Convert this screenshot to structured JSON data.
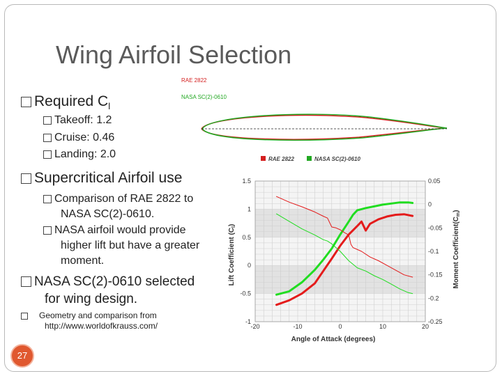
{
  "slide": {
    "title": "Wing Airfoil Selection",
    "page_number": "27",
    "bullets": {
      "required": {
        "text": "Required C",
        "sub": "l"
      },
      "takeoff": "Takeoff: 1.2",
      "cruise": "Cruise: 0.46",
      "landing": "Landing: 2.0",
      "supercritical": "Supercritical Airfoil use",
      "comparison_line1": "Comparison of RAE 2822 to",
      "comparison_line2": "NASA SC(2)-0610.",
      "nasa_line1": "NASA airfoil would provide",
      "nasa_line2": "higher lift but have a greater",
      "nasa_line3": "moment.",
      "selected_line1": "NASA SC(2)-0610 selected",
      "selected_line2": "for wing design.",
      "geometry_line1": "Geometry and comparison from",
      "geometry_line2": "http://www.worldofkrauss.com/"
    }
  },
  "airfoil_figure": {
    "legend": [
      {
        "name": "RAE 2822",
        "color": "#d42020"
      },
      {
        "name": "NASA SC(2)-0610",
        "color": "#22a822"
      }
    ]
  },
  "chart_data": {
    "type": "line",
    "legend": [
      "RAE 2822",
      "NASA SC(2)-0610"
    ],
    "xlabel": "Angle of Attack (degrees)",
    "ylabel_left": "Lift Coefficient (C",
    "ylabel_left_sub": "l",
    "ylabel_right": "Moment Coefficient(C",
    "ylabel_right_sub": "m",
    "xlim": [
      -20,
      20
    ],
    "ylim_left": [
      -1,
      1.5
    ],
    "ylim_right": [
      -0.25,
      0.05
    ],
    "x_ticks": [
      "-20",
      "-10",
      "0",
      "10",
      "20"
    ],
    "y_ticks_left": [
      "1.5",
      "1",
      "0.5",
      "0",
      "-0.5",
      "-1"
    ],
    "y_ticks_right": [
      "0.05",
      "0",
      "-0.05",
      "-0.1",
      "-0.15",
      "-0.2",
      "-0.25"
    ],
    "grid": true,
    "colors": {
      "rae": "#e41b1b",
      "nasa": "#21dd21"
    },
    "series": [
      {
        "name": "RAE 2822",
        "axis": "left",
        "width": 3,
        "x": [
          -15,
          -12,
          -9,
          -6,
          -4,
          -2,
          0,
          2,
          4,
          5,
          6,
          7,
          9,
          11,
          13,
          15,
          17
        ],
        "y": [
          -0.7,
          -0.62,
          -0.5,
          -0.32,
          -0.1,
          0.12,
          0.35,
          0.55,
          0.7,
          0.78,
          0.62,
          0.74,
          0.82,
          0.87,
          0.9,
          0.91,
          0.88
        ]
      },
      {
        "name": "NASA SC(2)-0610",
        "axis": "left",
        "width": 3,
        "x": [
          -15,
          -12,
          -9,
          -6,
          -4,
          -2,
          0,
          2,
          3,
          4,
          5,
          6,
          8,
          10,
          12,
          14,
          16,
          17
        ],
        "y": [
          -0.52,
          -0.46,
          -0.3,
          -0.08,
          0.1,
          0.3,
          0.55,
          0.78,
          0.9,
          0.98,
          1.0,
          1.02,
          1.05,
          1.08,
          1.1,
          1.12,
          1.12,
          1.11
        ]
      },
      {
        "name": "RAE 2822",
        "axis": "right",
        "width": 1,
        "x": [
          -15,
          -12,
          -9,
          -6,
          -4,
          -3,
          -2,
          -1,
          0,
          1,
          2,
          2.5,
          3,
          5,
          7,
          9,
          11,
          13,
          15,
          17
        ],
        "y": [
          0.017,
          0.005,
          -0.005,
          -0.016,
          -0.025,
          -0.029,
          -0.048,
          -0.05,
          -0.054,
          -0.06,
          -0.065,
          -0.085,
          -0.092,
          -0.1,
          -0.112,
          -0.12,
          -0.13,
          -0.14,
          -0.15,
          -0.155
        ]
      },
      {
        "name": "NASA SC(2)-0610",
        "axis": "right",
        "width": 1,
        "x": [
          -15,
          -12,
          -9,
          -6,
          -4,
          -3,
          -2,
          0,
          2,
          4,
          6,
          8,
          10,
          12,
          14,
          16,
          17
        ],
        "y": [
          -0.02,
          -0.036,
          -0.052,
          -0.065,
          -0.075,
          -0.078,
          -0.084,
          -0.1,
          -0.12,
          -0.135,
          -0.142,
          -0.152,
          -0.16,
          -0.17,
          -0.18,
          -0.188,
          -0.19
        ]
      }
    ]
  }
}
